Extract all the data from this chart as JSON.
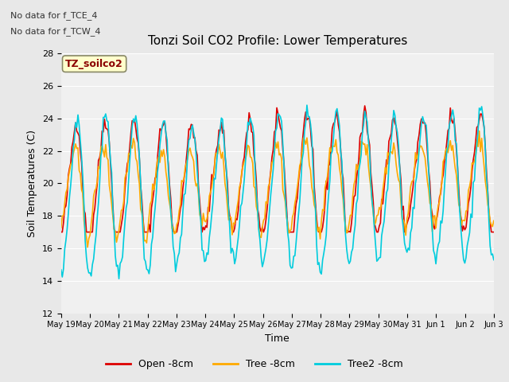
{
  "title": "Tonzi Soil CO2 Profile: Lower Temperatures",
  "xlabel": "Time",
  "ylabel": "Soil Temperatures (C)",
  "annotation_lines": [
    "No data for f_TCE_4",
    "No data for f_TCW_4"
  ],
  "legend_label": "TZ_soilco2",
  "series_labels": [
    "Open -8cm",
    "Tree -8cm",
    "Tree2 -8cm"
  ],
  "series_colors": [
    "#dd0000",
    "#ffaa00",
    "#00ccdd"
  ],
  "ylim": [
    12,
    28
  ],
  "yticks": [
    12,
    14,
    16,
    18,
    20,
    22,
    24,
    26,
    28
  ],
  "xtick_labels": [
    "May 19",
    "May 20",
    "May 21",
    "May 22",
    "May 23",
    "May 24",
    "May 25",
    "May 26",
    "May 27",
    "May 28",
    "May 29",
    "May 30",
    "May 31",
    "Jun 1",
    "Jun 2",
    "Jun 3"
  ],
  "bg_color": "#e8e8e8",
  "plot_bg_color": "#f0f0f0",
  "n_days": 15,
  "points_per_day": 24
}
